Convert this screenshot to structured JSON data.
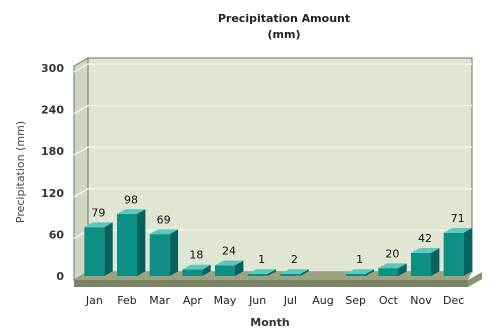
{
  "chart_data": {
    "type": "bar",
    "title_line1": "Precipitation Amount",
    "title_line2": "(mm)",
    "xlabel": "Month",
    "ylabel": "Precipitation (mm)",
    "ylim": [
      0,
      300
    ],
    "yticks": [
      0,
      60,
      120,
      180,
      240,
      300
    ],
    "grid": true,
    "categories": [
      "Jan",
      "Feb",
      "Mar",
      "Apr",
      "May",
      "Jun",
      "Jul",
      "Aug",
      "Sep",
      "Oct",
      "Nov",
      "Dec"
    ],
    "values": [
      79,
      98,
      69,
      18,
      24,
      1,
      2,
      0,
      1,
      20,
      42,
      71
    ],
    "data_labels": [
      "79",
      "98",
      "69",
      "18",
      "24",
      "1",
      "2",
      "",
      "1",
      "20",
      "42",
      "71"
    ],
    "colors": {
      "plot_bg": "#dfe6d4",
      "floor": "#9ba27d",
      "floor_side": "#7b8263",
      "bar_front": "#0e8f86",
      "bar_top": "#5cc7bd",
      "bar_side": "#06625c",
      "grid": "#f2f4ec",
      "wall_edge": "#6f7560"
    }
  }
}
